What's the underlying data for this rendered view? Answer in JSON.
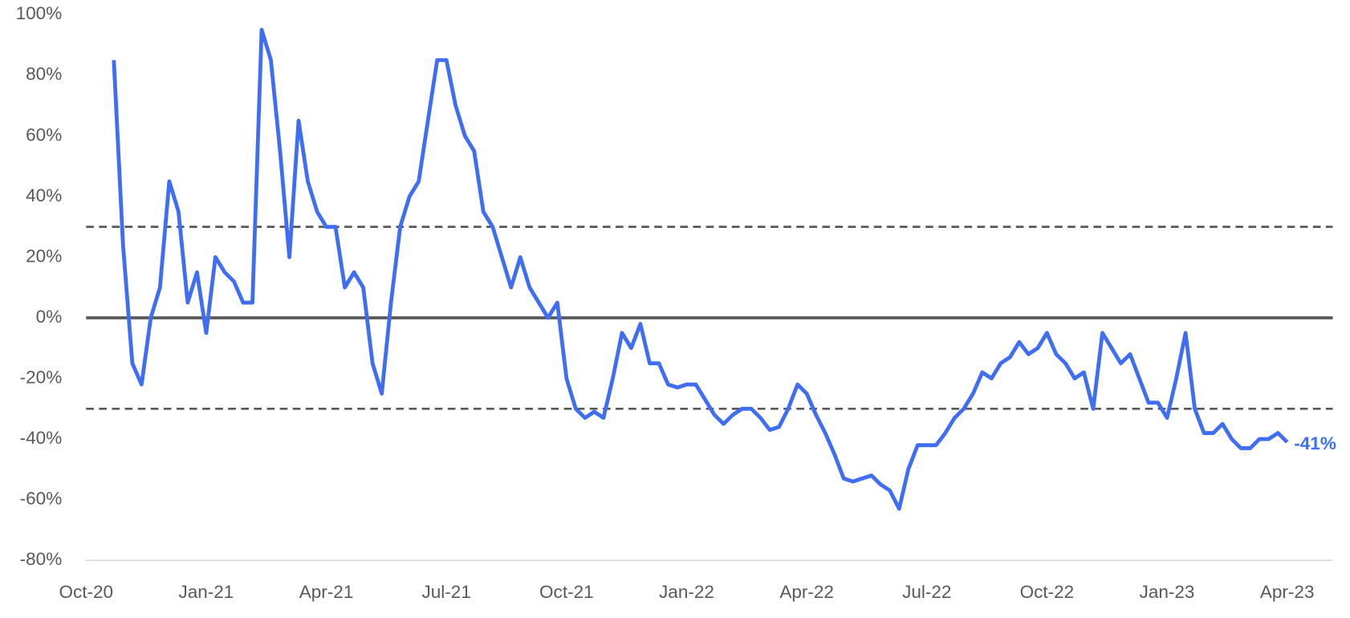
{
  "chart_data": {
    "type": "line",
    "categories": [
      "Oct-20",
      null,
      null,
      null,
      null,
      null,
      null,
      null,
      null,
      null,
      null,
      null,
      null,
      "Jan-21",
      null,
      null,
      null,
      null,
      null,
      null,
      null,
      null,
      null,
      null,
      null,
      null,
      "Apr-21",
      null,
      null,
      null,
      null,
      null,
      null,
      null,
      null,
      null,
      null,
      null,
      null,
      "Jul-21",
      null,
      null,
      null,
      null,
      null,
      null,
      null,
      null,
      null,
      null,
      null,
      null,
      "Oct-21",
      null,
      null,
      null,
      null,
      null,
      null,
      null,
      null,
      null,
      null,
      null,
      null,
      "Jan-22",
      null,
      null,
      null,
      null,
      null,
      null,
      null,
      null,
      null,
      null,
      null,
      null,
      "Apr-22",
      null,
      null,
      null,
      null,
      null,
      null,
      null,
      null,
      null,
      null,
      null,
      null,
      "Jul-22",
      null,
      null,
      null,
      null,
      null,
      null,
      null,
      null,
      null,
      null,
      null,
      null,
      "Oct-22",
      null,
      null,
      null,
      null,
      null,
      null,
      null,
      null,
      null,
      null,
      null,
      null,
      "Jan-23",
      null,
      null,
      null,
      null,
      null,
      null,
      null,
      null,
      null,
      null,
      null,
      null,
      "Apr-23"
    ],
    "series": [
      {
        "color": "#3f6ef5",
        "values": [
          null,
          null,
          null,
          85,
          24,
          -15,
          -22,
          0,
          10,
          45,
          35,
          5,
          15,
          -5,
          20,
          15,
          12,
          5,
          5,
          95,
          85,
          55,
          20,
          65,
          45,
          35,
          30,
          30,
          10,
          15,
          10,
          -15,
          -25,
          5,
          30,
          40,
          45,
          65,
          85,
          85,
          70,
          60,
          55,
          35,
          30,
          20,
          10,
          20,
          10,
          5,
          0,
          5,
          -20,
          -30,
          -33,
          -31,
          -33,
          -20,
          -5,
          -10,
          -2,
          -15,
          -15,
          -22,
          -23,
          -22,
          -22,
          -27,
          -32,
          -35,
          -32,
          -30,
          -30,
          -33,
          -37,
          -36,
          -30,
          -22,
          -25,
          -32,
          -38,
          -45,
          -53,
          -54,
          -53,
          -52,
          -55,
          -57,
          -63,
          -50,
          -42,
          -42,
          -42,
          -38,
          -33,
          -30,
          -25,
          -18,
          -20,
          -15,
          -13,
          -8,
          -12,
          -10,
          -5,
          -12,
          -15,
          -20,
          -18,
          -30,
          -5,
          -10,
          -15,
          -12,
          -20,
          -28,
          -28,
          -33,
          -20,
          -5,
          -30,
          -38,
          -38,
          -35,
          -40,
          -43,
          -43,
          -40,
          -40,
          -38,
          -41
        ]
      }
    ],
    "annotation": "-41%",
    "ylim": [
      -80,
      100
    ],
    "yticks": [
      {
        "value": -80,
        "label": "-80%"
      },
      {
        "value": -60,
        "label": "-60%"
      },
      {
        "value": -40,
        "label": "-40%"
      },
      {
        "value": -20,
        "label": "-20%"
      },
      {
        "value": 0,
        "label": "0%"
      },
      {
        "value": 20,
        "label": "20%"
      },
      {
        "value": 40,
        "label": "40%"
      },
      {
        "value": 60,
        "label": "60%"
      },
      {
        "value": 80,
        "label": "80%"
      },
      {
        "value": 100,
        "label": "100%"
      }
    ],
    "reference_lines": [
      {
        "value": 30,
        "style": "dashed"
      },
      {
        "value": 0,
        "style": "solid"
      },
      {
        "value": -30,
        "style": "dashed"
      }
    ]
  }
}
